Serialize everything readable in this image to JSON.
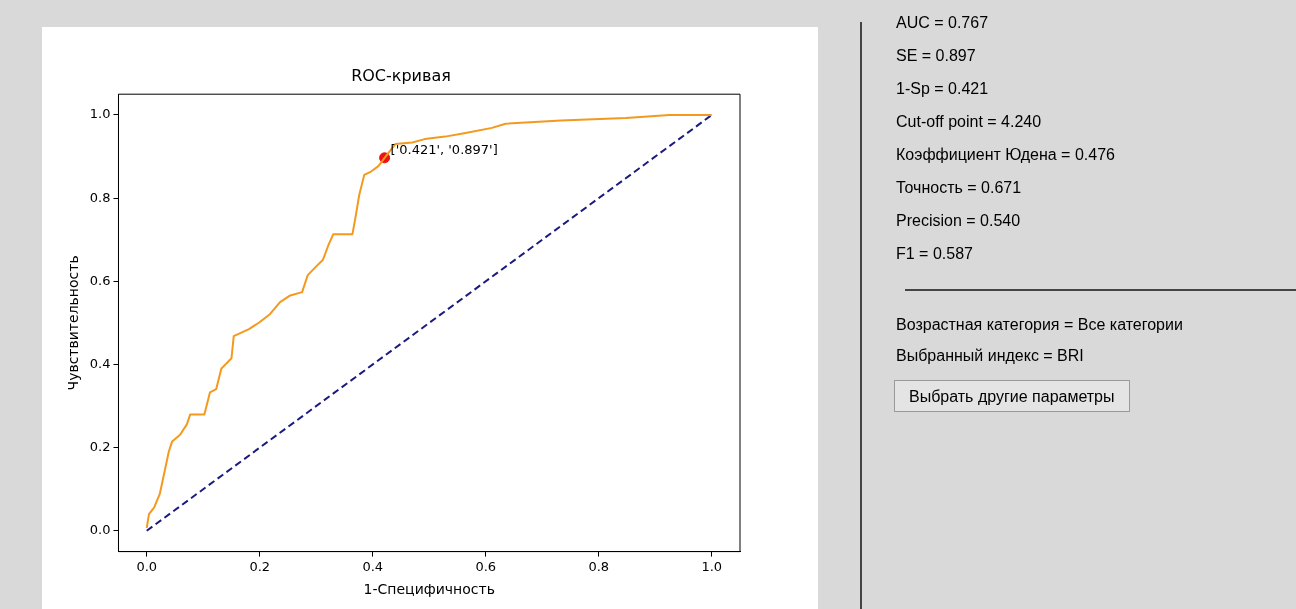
{
  "chart_data": {
    "type": "line",
    "title": "ROC-кривая",
    "xlabel": "1-Специфичность",
    "ylabel": "Чувствительность",
    "xlim": [
      -0.05,
      1.05
    ],
    "ylim": [
      -0.05,
      1.05
    ],
    "xticks": [
      {
        "value": 0,
        "label": "0.0"
      },
      {
        "value": 0.2,
        "label": "0.2"
      },
      {
        "value": 0.4,
        "label": "0.4"
      },
      {
        "value": 0.6,
        "label": "0.6"
      },
      {
        "value": 0.8,
        "label": "0.8"
      },
      {
        "value": 1,
        "label": "1.0"
      }
    ],
    "yticks": [
      {
        "value": 0,
        "label": "0.0"
      },
      {
        "value": 0.2,
        "label": "0.2"
      },
      {
        "value": 0.4,
        "label": "0.4"
      },
      {
        "value": 0.6,
        "label": "0.6"
      },
      {
        "value": 0.8,
        "label": "0.8"
      },
      {
        "value": 1,
        "label": "1.0"
      }
    ],
    "grid": false,
    "legend": false,
    "series": [
      {
        "color": "#f39a1e",
        "marker": "none",
        "line_style": "solid",
        "x": [
          0,
          0.004,
          0.013,
          0.023,
          0.032,
          0.039,
          0.045,
          0.059,
          0.071,
          0.077,
          0.102,
          0.112,
          0.123,
          0.132,
          0.15,
          0.154,
          0.181,
          0.199,
          0.218,
          0.236,
          0.254,
          0.275,
          0.285,
          0.3,
          0.312,
          0.321,
          0.33,
          0.364,
          0.37,
          0.376,
          0.385,
          0.397,
          0.41,
          0.421,
          0.44,
          0.47,
          0.492,
          0.528,
          0.562,
          0.611,
          0.635,
          0.733,
          0.848,
          0.925,
          1
        ],
        "values": [
          0.007,
          0.04,
          0.056,
          0.088,
          0.145,
          0.19,
          0.215,
          0.231,
          0.256,
          0.28,
          0.28,
          0.333,
          0.341,
          0.39,
          0.415,
          0.468,
          0.485,
          0.501,
          0.521,
          0.55,
          0.566,
          0.574,
          0.615,
          0.636,
          0.652,
          0.685,
          0.713,
          0.713,
          0.758,
          0.807,
          0.856,
          0.864,
          0.877,
          0.897,
          0.93,
          0.934,
          0.942,
          0.948,
          0.956,
          0.969,
          0.979,
          0.987,
          0.993,
          1,
          1
        ]
      },
      {
        "type": "line",
        "color": "#1a1a80",
        "marker": "none",
        "line_style": "dashed",
        "x": [
          0,
          1
        ],
        "values": [
          0,
          1
        ]
      },
      {
        "type": "scatter",
        "color": "#ee1111",
        "marker": "circle",
        "x": [
          0.421
        ],
        "values": [
          0.897
        ]
      }
    ],
    "annotations": [
      {
        "text": "['0.421', '0.897']",
        "x": 0.421,
        "y": 0.897
      },
      "AUC = 0.767",
      "SE = 0.897",
      "1-Sp = 0.421",
      "Cut-off point = 4.240",
      "Коэффициент Юдена = 0.476",
      "Точность = 0.671",
      "Precision = 0.540",
      "F1 = 0.587",
      "Возрастная категория = Все категории",
      "Выбранный индекс = BRI",
      "Выбрать другие параметры"
    ]
  }
}
